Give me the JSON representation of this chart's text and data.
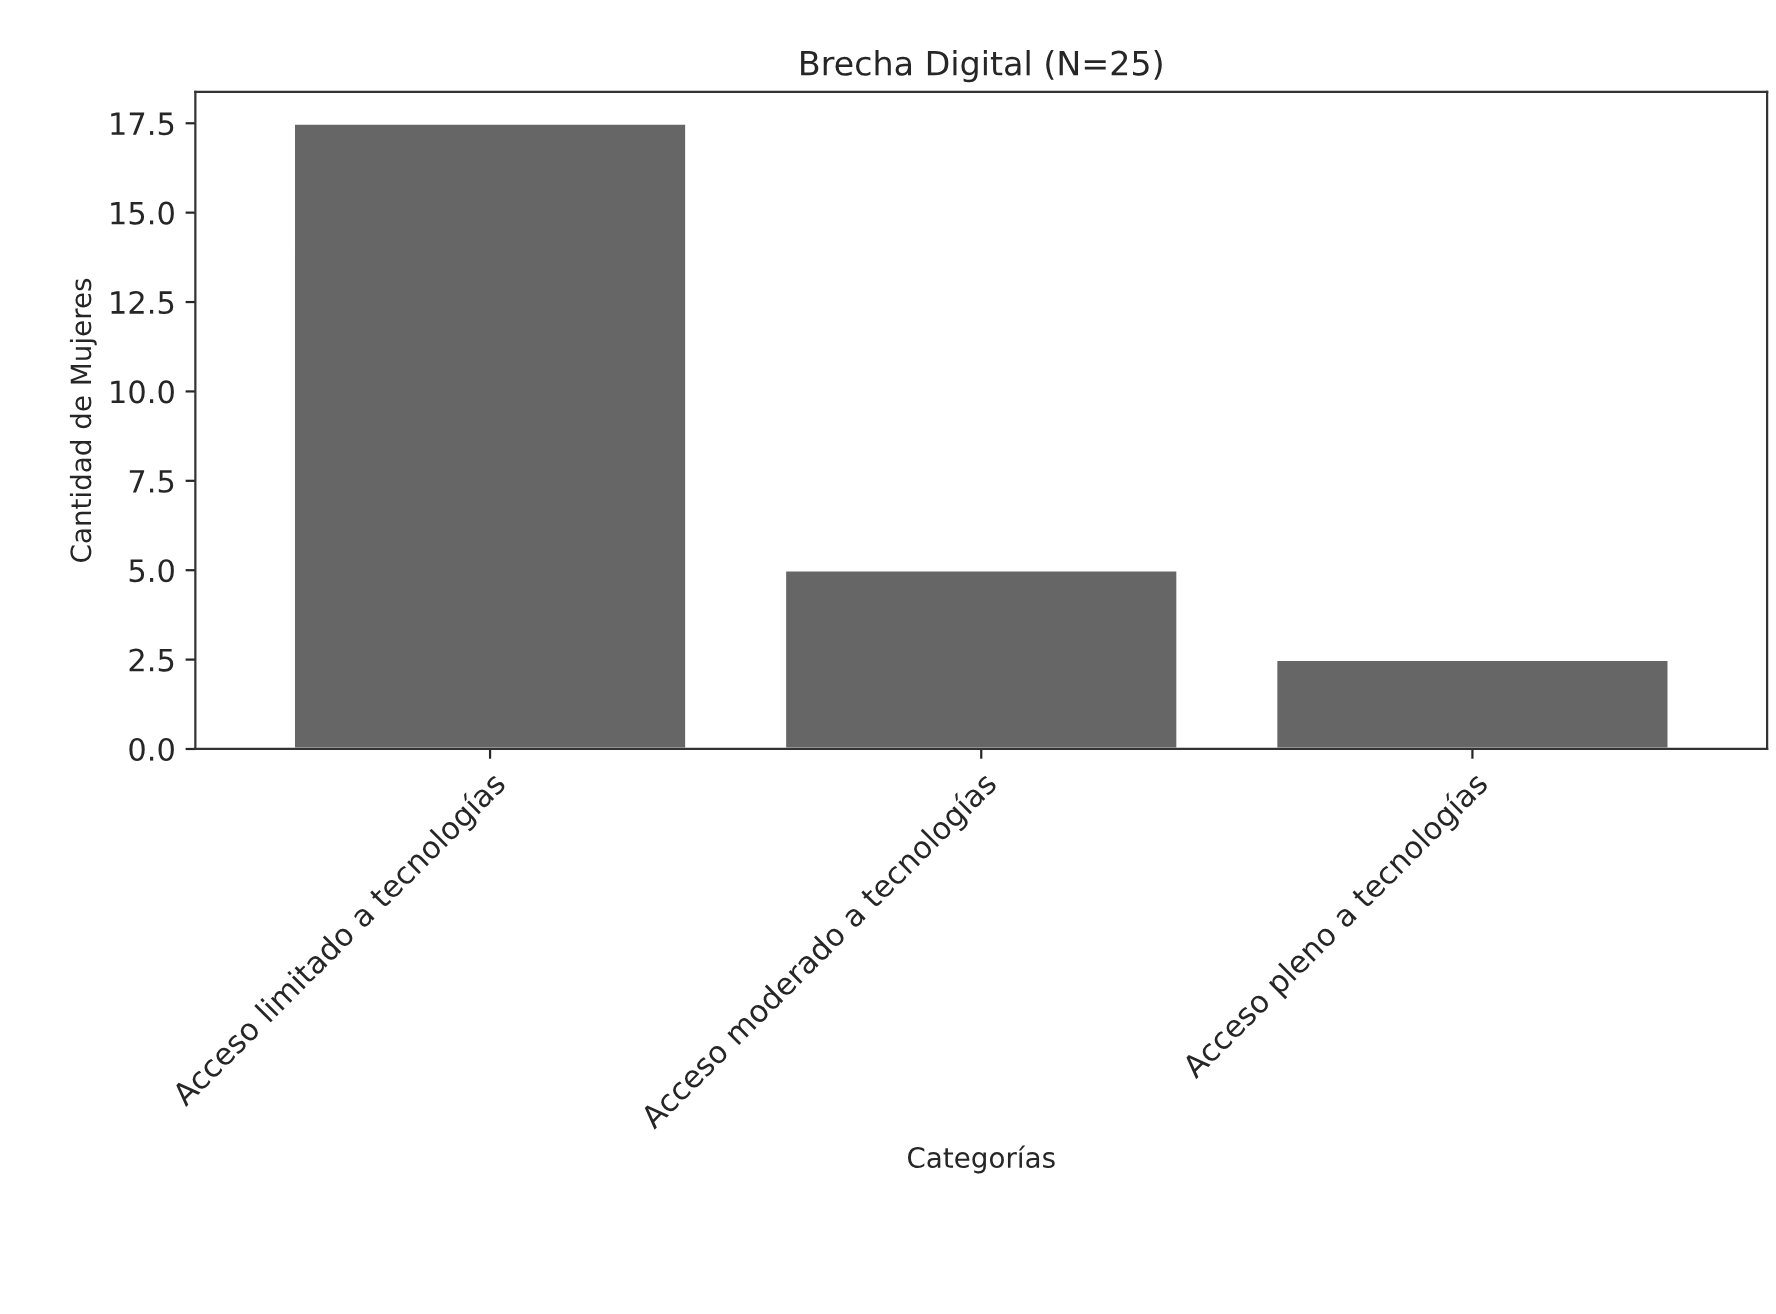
{
  "chart_data": {
    "type": "bar",
    "title": "Brecha Digital (N=25)",
    "xlabel": "Categorías",
    "ylabel": "Cantidad de Mujeres",
    "categories": [
      "Acceso limitado a tecnologías",
      "Acceso moderado a tecnologías",
      "Acceso pleno a tecnologías"
    ],
    "values": [
      17.5,
      5,
      2.5
    ],
    "color": "#666666",
    "ylim": [
      0,
      18.375
    ],
    "yticks": [
      {
        "value": 0,
        "label": "0.0"
      },
      {
        "value": 2.5,
        "label": "2.5"
      },
      {
        "value": 5,
        "label": "5.0"
      },
      {
        "value": 7.5,
        "label": "7.5"
      },
      {
        "value": 10,
        "label": "10.0"
      },
      {
        "value": 12.5,
        "label": "12.5"
      },
      {
        "value": 15,
        "label": "15.0"
      },
      {
        "value": 17.5,
        "label": "17.5"
      }
    ],
    "grid": false
  }
}
